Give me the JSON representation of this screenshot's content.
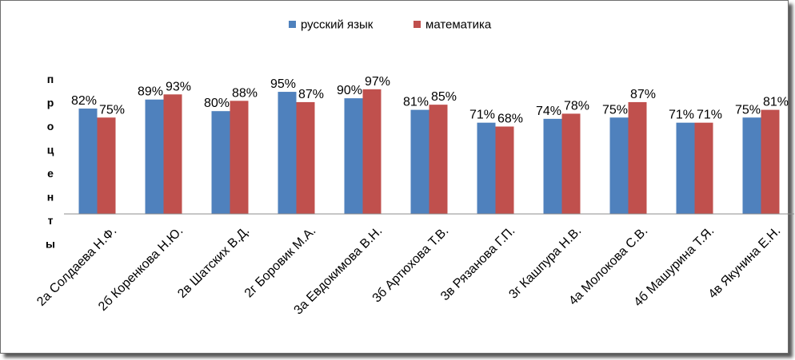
{
  "chart_data": {
    "type": "bar",
    "title": "",
    "xlabel": "",
    "ylabel": "проценты",
    "ylim": [
      0,
      100
    ],
    "grid": false,
    "legend_position": "top",
    "value_suffix": "%",
    "categories": [
      "2а Солдаева Н.Ф.",
      "2б Коренкова Н.Ю.",
      "2в Шатских В.Д.",
      "2г Боровик М.А.",
      "3а Евдокимова В.Н.",
      "3б Артюхова Т.В.",
      "3в Рязанова Г.П.",
      "3г Кашпура Н.В.",
      "4а Молокова С.В.",
      "4б Машурина Т.Я.",
      "4в Якунина Е.Н."
    ],
    "series": [
      {
        "name": "русский язык",
        "color": "#4f81bd",
        "values": [
          82,
          89,
          80,
          95,
          90,
          81,
          71,
          74,
          75,
          71,
          75
        ]
      },
      {
        "name": "математика",
        "color": "#c0504d",
        "values": [
          75,
          93,
          88,
          87,
          97,
          85,
          68,
          78,
          87,
          71,
          81
        ]
      }
    ]
  }
}
